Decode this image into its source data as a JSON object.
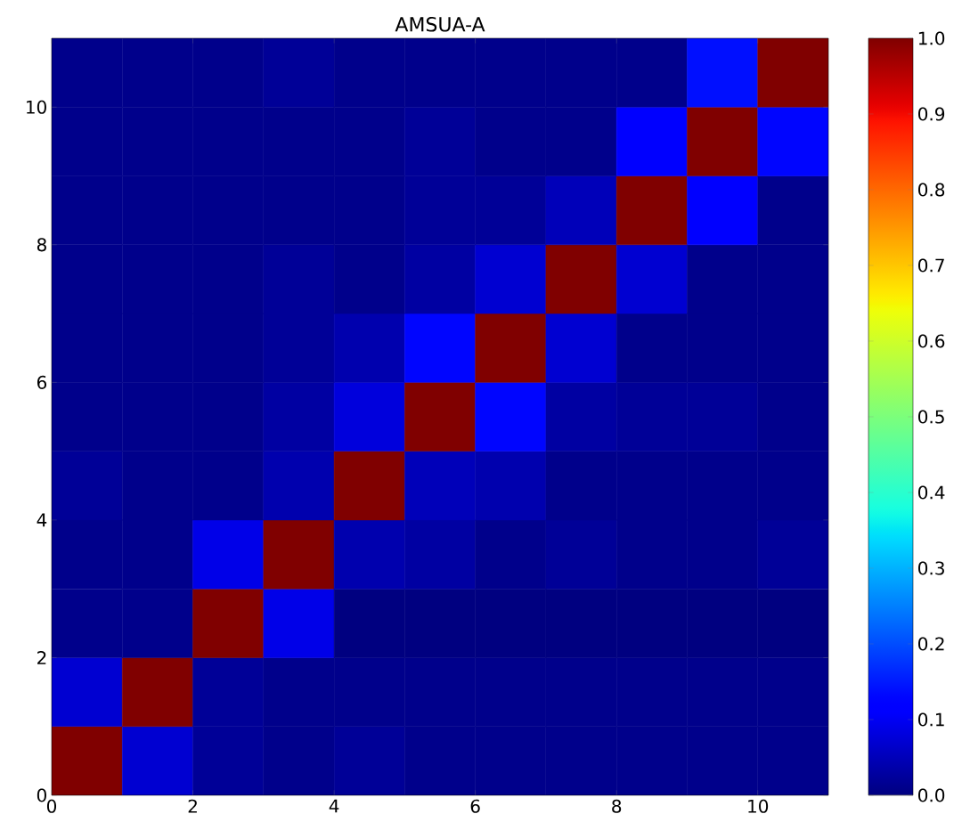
{
  "chart_data": {
    "type": "heatmap",
    "title": "AMSUA-A",
    "xlim": [
      0,
      11
    ],
    "xticks": [
      0,
      2,
      4,
      6,
      8,
      10
    ],
    "ylim": [
      0,
      11
    ],
    "yticks": [
      0,
      2,
      4,
      6,
      8,
      10
    ],
    "cells": [
      [
        0.01,
        0.01,
        0.01,
        0.02,
        0.01,
        0.01,
        0.01,
        0.01,
        0.01,
        0.14,
        1.0
      ],
      [
        0.01,
        0.01,
        0.01,
        0.01,
        0.01,
        0.02,
        0.01,
        0.01,
        0.11,
        1.0,
        0.13
      ],
      [
        0.01,
        0.01,
        0.01,
        0.01,
        0.01,
        0.02,
        0.02,
        0.05,
        1.0,
        0.11,
        0.01
      ],
      [
        0.01,
        0.01,
        0.01,
        0.02,
        0.01,
        0.03,
        0.07,
        1.0,
        0.07,
        0.01,
        0.01
      ],
      [
        0.01,
        0.01,
        0.01,
        0.02,
        0.04,
        0.13,
        1.0,
        0.07,
        0.01,
        0.01,
        0.01
      ],
      [
        0.01,
        0.01,
        0.01,
        0.03,
        0.08,
        1.0,
        0.13,
        0.03,
        0.02,
        0.02,
        0.01
      ],
      [
        0.02,
        0.01,
        0.01,
        0.04,
        1.0,
        0.05,
        0.04,
        0.01,
        0.01,
        0.01,
        0.01
      ],
      [
        0.01,
        0.01,
        0.09,
        1.0,
        0.04,
        0.03,
        0.01,
        0.02,
        0.01,
        0.01,
        0.02
      ],
      [
        0.01,
        0.01,
        1.0,
        0.09,
        0.0,
        0.0,
        0.0,
        0.0,
        0.0,
        0.0,
        0.0
      ],
      [
        0.07,
        1.0,
        0.02,
        0.01,
        0.01,
        0.01,
        0.01,
        0.01,
        0.01,
        0.01,
        0.01
      ],
      [
        1.0,
        0.07,
        0.02,
        0.01,
        0.02,
        0.01,
        0.01,
        0.01,
        0.01,
        0.01,
        0.01
      ]
    ],
    "clim": [
      0,
      1
    ],
    "cticks": [
      {
        "value": 0,
        "label": "0.0"
      },
      {
        "value": 0.1,
        "label": "0.1"
      },
      {
        "value": 0.2,
        "label": "0.2"
      },
      {
        "value": 0.3,
        "label": "0.3"
      },
      {
        "value": 0.4,
        "label": "0.4"
      },
      {
        "value": 0.5,
        "label": "0.5"
      },
      {
        "value": 0.6,
        "label": "0.6"
      },
      {
        "value": 0.7,
        "label": "0.7"
      },
      {
        "value": 0.8,
        "label": "0.8"
      },
      {
        "value": 0.9,
        "label": "0.9"
      },
      {
        "value": 1,
        "label": "1.0"
      }
    ]
  }
}
